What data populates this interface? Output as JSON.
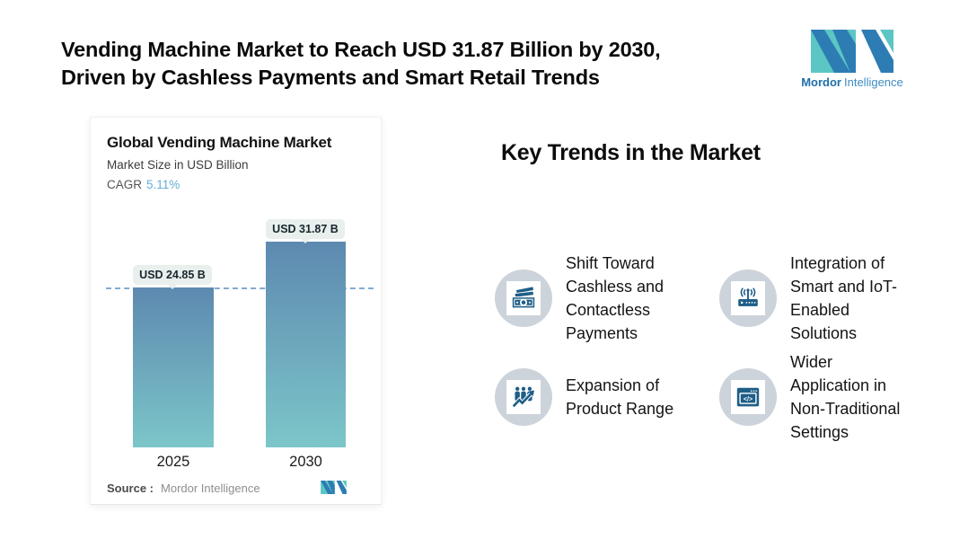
{
  "header": {
    "title_line1": "Vending Machine Market to Reach USD 31.87 Billion by 2030,",
    "title_line2": "Driven by Cashless Payments and Smart Retail Trends",
    "brand": {
      "name_bold": "Mordor",
      "name_regular": "Intelligence"
    }
  },
  "chart_card": {
    "title": "Global Vending Machine Market",
    "subtitle": "Market Size in USD Billion",
    "cagr_label": "CAGR",
    "cagr_value": "5.11%",
    "source_label": "Source :",
    "source_value": "Mordor Intelligence"
  },
  "chart_data": {
    "type": "bar",
    "title": "Global Vending Machine Market",
    "subtitle": "Market Size in USD Billion",
    "cagr": "5.11%",
    "categories": [
      "2025",
      "2030"
    ],
    "values": [
      24.85,
      31.87
    ],
    "value_labels": [
      "USD 24.85 B",
      "USD 31.87 B"
    ],
    "ylabel": "Market Size in USD Billion",
    "reference_line_value": 24.85,
    "reference_line_style": "dashed",
    "grid": "off",
    "legend": "none",
    "bar_gradient": [
      "#5d89b0",
      "#7cc6c9"
    ],
    "dash_line_color": "#82abd3"
  },
  "trends": {
    "heading": "Key Trends in the Market",
    "items": [
      {
        "icon": "cash-icon",
        "text": "Shift Toward\nCashless and\nContactless\nPayments"
      },
      {
        "icon": "iot-router-icon",
        "text": "Integration of\nSmart and IoT-\nEnabled\nSolutions"
      },
      {
        "icon": "people-growth-icon",
        "text": "Expansion of\nProduct Range"
      },
      {
        "icon": "code-window-icon",
        "text": "Wider\nApplication in\nNon-Traditional\nSettings"
      }
    ]
  },
  "colors": {
    "logo_teal": "#5bc6c3",
    "logo_blue": "#2d7cb3",
    "icon_glyph_blue": "#1e5e87",
    "icon_circle_gray": "#ccd3da",
    "pill_bg": "#e9efec",
    "cagr_accent": "#64aed6"
  }
}
